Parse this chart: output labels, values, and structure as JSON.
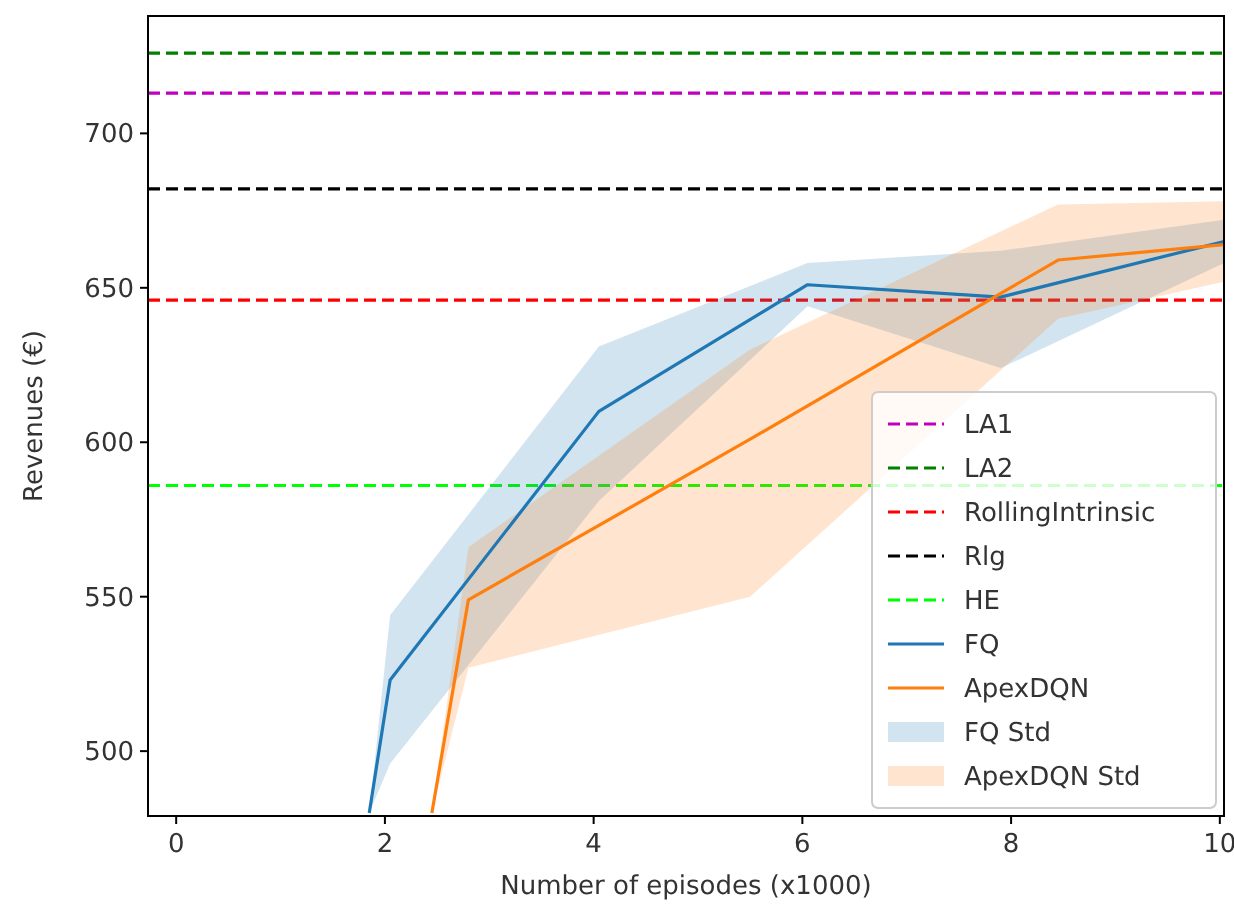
{
  "chart_data": {
    "type": "line",
    "xlabel": "Number of episodes (x1000)",
    "ylabel": "Revenues (€)",
    "xlim": [
      -0.27,
      10.04
    ],
    "ylim": [
      479,
      738
    ],
    "xticks": [
      0,
      2,
      4,
      6,
      8,
      10
    ],
    "yticks": [
      500,
      550,
      600,
      650,
      700
    ],
    "grid": false,
    "legend": "bottom right",
    "line_style": "solid",
    "marker": "none",
    "ref_lines": [
      {
        "axis": "y",
        "value": 713,
        "label": "LA1",
        "color": "#bf00bf",
        "line_style": "dashed"
      },
      {
        "axis": "y",
        "value": 726,
        "label": "LA2",
        "color": "#008000",
        "line_style": "dashed"
      },
      {
        "axis": "y",
        "value": 646,
        "label": "RollingIntrinsic",
        "color": "#ff0000",
        "line_style": "dashed"
      },
      {
        "axis": "y",
        "value": 682,
        "label": "Rlg",
        "color": "#000000",
        "line_style": "dashed"
      },
      {
        "axis": "y",
        "value": 586,
        "label": "HE",
        "color": "#00ff00",
        "line_style": "dashed"
      }
    ],
    "series": [
      {
        "name": "FQ",
        "color": "#1f77b4",
        "x": [
          1.85,
          2.05,
          4.05,
          6.05,
          7.9,
          10.04
        ],
        "values": [
          480,
          523,
          610,
          651,
          647,
          665
        ],
        "lower": [
          480,
          496,
          581,
          644,
          624,
          658
        ],
        "upper": [
          480,
          544,
          631,
          658,
          662,
          672
        ]
      },
      {
        "name": "ApexDQN",
        "color": "#ff7f0e",
        "x": [
          2.45,
          2.8,
          5.5,
          8.45,
          10.04
        ],
        "values": [
          480,
          549,
          601,
          659,
          664
        ],
        "lower": [
          480,
          527,
          550,
          640,
          652
        ],
        "upper": [
          480,
          566,
          630,
          677,
          678
        ]
      }
    ],
    "annotations": [
      "FQ Std",
      "ApexDQN Std"
    ]
  }
}
